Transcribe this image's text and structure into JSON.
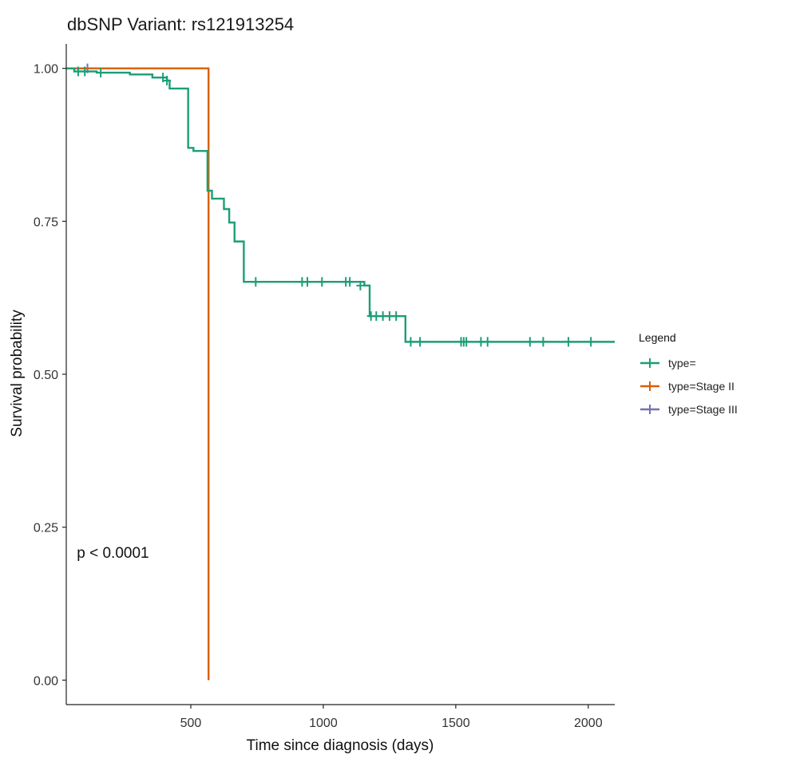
{
  "chart_data": {
    "type": "line",
    "subtype": "kaplan-meier-step",
    "title": "dbSNP Variant: rs121913254",
    "xlabel": "Time since diagnosis (days)",
    "ylabel": "Survival probability",
    "xlim": [
      30,
      2100
    ],
    "ylim": [
      -0.04,
      1.04
    ],
    "x_ticks": [
      500,
      1000,
      1500,
      2000
    ],
    "x_tick_labels": [
      "500",
      "1000",
      "1500",
      "2000"
    ],
    "y_ticks": [
      0,
      0.25,
      0.5,
      0.75,
      1
    ],
    "y_tick_labels": [
      "0.00",
      "0.25",
      "0.50",
      "0.75",
      "1.00"
    ],
    "grid": false,
    "legend": {
      "title": "Legend",
      "placement": "right",
      "entries": [
        "type=",
        "type=Stage II",
        "type=Stage III"
      ]
    },
    "annotations": [
      {
        "text": "p < 0.0001",
        "x": 70,
        "y": 0.2
      }
    ],
    "series": [
      {
        "name": "type=",
        "color": "#1b9e77",
        "steps": [
          [
            30,
            1.0
          ],
          [
            60,
            0.995
          ],
          [
            145,
            0.993
          ],
          [
            270,
            0.99
          ],
          [
            355,
            0.985
          ],
          [
            410,
            0.98
          ],
          [
            420,
            0.967
          ],
          [
            490,
            0.87
          ],
          [
            510,
            0.865
          ],
          [
            563,
            0.8
          ],
          [
            580,
            0.787
          ],
          [
            625,
            0.77
          ],
          [
            645,
            0.748
          ],
          [
            665,
            0.717
          ],
          [
            700,
            0.651
          ],
          [
            1155,
            0.645
          ],
          [
            1175,
            0.595
          ],
          [
            1310,
            0.553
          ],
          [
            2100,
            0.553
          ]
        ],
        "censored": [
          [
            75,
            0.995
          ],
          [
            100,
            0.995
          ],
          [
            160,
            0.993
          ],
          [
            395,
            0.985
          ],
          [
            410,
            0.98
          ],
          [
            745,
            0.651
          ],
          [
            920,
            0.651
          ],
          [
            940,
            0.651
          ],
          [
            995,
            0.651
          ],
          [
            1085,
            0.651
          ],
          [
            1100,
            0.651
          ],
          [
            1140,
            0.645
          ],
          [
            1180,
            0.595
          ],
          [
            1200,
            0.595
          ],
          [
            1225,
            0.595
          ],
          [
            1250,
            0.595
          ],
          [
            1275,
            0.595
          ],
          [
            1330,
            0.553
          ],
          [
            1365,
            0.553
          ],
          [
            1520,
            0.553
          ],
          [
            1530,
            0.553
          ],
          [
            1540,
            0.553
          ],
          [
            1595,
            0.553
          ],
          [
            1620,
            0.553
          ],
          [
            1780,
            0.553
          ],
          [
            1830,
            0.553
          ],
          [
            1925,
            0.553
          ],
          [
            2010,
            0.553
          ]
        ]
      },
      {
        "name": "type=Stage II",
        "color": "#d95f02",
        "steps": [
          [
            30,
            1.0
          ],
          [
            567,
            1.0
          ],
          [
            567,
            0.0
          ]
        ],
        "censored": []
      },
      {
        "name": "type=Stage III",
        "color": "#7570b3",
        "steps": [
          [
            30,
            1.0
          ],
          [
            115,
            1.0
          ]
        ],
        "censored": [
          [
            110,
            1.0
          ]
        ]
      }
    ]
  }
}
